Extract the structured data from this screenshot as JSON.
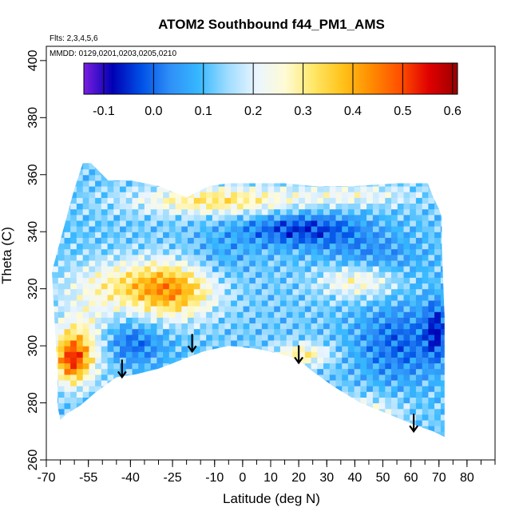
{
  "chart_data": {
    "type": "heatmap",
    "title": "ATOM2 Southbound f44_PM1_AMS",
    "flights_label": "Flts: 2,3,4,5,6",
    "dates_label": "MMDD: 0129,0201,0203,0205,0210",
    "xlabel": "Latitude (deg N)",
    "ylabel": "Theta (C)",
    "xlim": [
      -70,
      90
    ],
    "ylim": [
      260,
      405
    ],
    "x_ticks": [
      -70,
      -55,
      -40,
      -25,
      -10,
      0,
      10,
      20,
      30,
      40,
      50,
      60,
      70,
      80
    ],
    "y_ticks": [
      260,
      280,
      300,
      320,
      340,
      360,
      380,
      400
    ],
    "colorbar": {
      "range": [
        -0.14,
        0.61
      ],
      "ticks": [
        -0.1,
        0.0,
        0.1,
        0.2,
        0.3,
        0.4,
        0.5,
        0.6
      ],
      "tick_labels": [
        "-0.1",
        "0.0",
        "0.1",
        "0.2",
        "0.3",
        "0.4",
        "0.5",
        "0.6"
      ],
      "colors": [
        "#7a1fe0",
        "#0000b4",
        "#0050e6",
        "#2f8ff7",
        "#36b8ff",
        "#9edcff",
        "#eaf5ff",
        "#fffbd6",
        "#ffe766",
        "#ffc21a",
        "#ff8c00",
        "#ff5000",
        "#e00000",
        "#9a0000"
      ]
    },
    "tropopause_markers": [
      {
        "lat": -43,
        "theta": 289
      },
      {
        "lat": -18,
        "theta": 298
      },
      {
        "lat": 20,
        "theta": 294
      },
      {
        "lat": 61,
        "theta": 270
      }
    ]
  }
}
